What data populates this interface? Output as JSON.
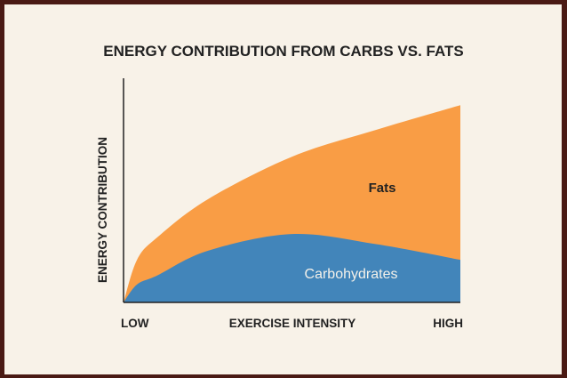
{
  "chart_data": {
    "type": "area",
    "stacked": true,
    "title": "ENERGY CONTRIBUTION FROM CARBS VS. FATS",
    "xlabel": "EXERCISE INTENSITY",
    "ylabel": "ENERGY CONTRIBUTION",
    "x_tick_labels": [
      "LOW",
      "HIGH"
    ],
    "x": [
      0,
      0.04,
      0.1,
      0.25,
      0.5,
      0.75,
      1
    ],
    "xlim": [
      0,
      1
    ],
    "ylim": [
      0,
      100
    ],
    "grid": false,
    "legend": "none (inline labels)",
    "series": [
      {
        "name": "Carbohydrates",
        "color": "#4285ba",
        "label_color": "#f4f1ea",
        "values": [
          0,
          8,
          12,
          23,
          30.5,
          26,
          19
        ]
      },
      {
        "name": "Fats",
        "color": "#f99d45",
        "label_color": "#222222",
        "values": [
          0,
          11,
          17,
          23,
          34.5,
          51,
          69
        ]
      }
    ]
  }
}
